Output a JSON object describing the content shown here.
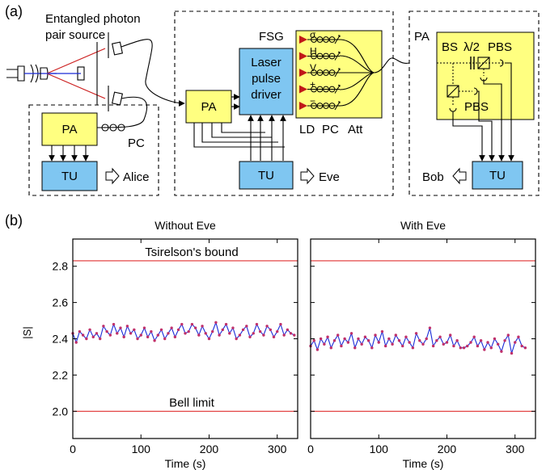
{
  "panel_a": {
    "letter": "(a)",
    "source_label_1": "Entangled photon",
    "source_label_2": "pair source",
    "alice": {
      "pa": "PA",
      "tu": "TU",
      "pc": "PC",
      "name": "Alice"
    },
    "eve": {
      "pa": "PA",
      "fsg": "FSG",
      "driver_1": "Laser",
      "driver_2": "pulse",
      "driver_3": "driver",
      "states": [
        "σ",
        "H",
        "V",
        "+",
        "−"
      ],
      "ld": "LD",
      "pc": "PC",
      "att": "Att",
      "tu": "TU",
      "name": "Eve"
    },
    "bob": {
      "pa": "PA",
      "bs": "BS",
      "half_wave": "λ/2",
      "pbs_top": "PBS",
      "pbs_bottom": "PBS",
      "tu": "TU",
      "name": "Bob"
    }
  },
  "panel_b": {
    "letter": "(b)",
    "ylabel": "|S|",
    "chart_data": [
      {
        "type": "line",
        "title": "Without Eve",
        "xlabel": "Time (s)",
        "ylabel": "|S|",
        "xlim": [
          0,
          330
        ],
        "ylim": [
          1.85,
          2.95
        ],
        "xticks": [
          0,
          100,
          200,
          300
        ],
        "yticks": [
          2.0,
          2.2,
          2.4,
          2.6,
          2.8
        ],
        "reference_lines": [
          {
            "label": "Tsirelson's bound",
            "y": 2.83
          },
          {
            "label": "Bell limit",
            "y": 2.0
          }
        ],
        "grid": false,
        "x": [
          0,
          5,
          10,
          15,
          20,
          25,
          30,
          35,
          40,
          45,
          50,
          55,
          60,
          65,
          70,
          75,
          80,
          85,
          90,
          95,
          100,
          105,
          110,
          115,
          120,
          125,
          130,
          135,
          140,
          145,
          150,
          155,
          160,
          165,
          170,
          175,
          180,
          185,
          190,
          195,
          200,
          205,
          210,
          215,
          220,
          225,
          230,
          235,
          240,
          245,
          250,
          255,
          260,
          265,
          270,
          275,
          280,
          285,
          290,
          295,
          300,
          305,
          310,
          315,
          320,
          325
        ],
        "y": [
          2.43,
          2.38,
          2.44,
          2.42,
          2.4,
          2.45,
          2.41,
          2.43,
          2.4,
          2.47,
          2.44,
          2.42,
          2.48,
          2.43,
          2.46,
          2.41,
          2.47,
          2.43,
          2.45,
          2.4,
          2.42,
          2.46,
          2.41,
          2.44,
          2.39,
          2.42,
          2.45,
          2.4,
          2.43,
          2.46,
          2.41,
          2.45,
          2.48,
          2.43,
          2.44,
          2.48,
          2.46,
          2.42,
          2.47,
          2.43,
          2.4,
          2.44,
          2.49,
          2.42,
          2.45,
          2.48,
          2.43,
          2.46,
          2.4,
          2.42,
          2.45,
          2.47,
          2.41,
          2.43,
          2.48,
          2.44,
          2.42,
          2.47,
          2.45,
          2.41,
          2.44,
          2.48,
          2.42,
          2.45,
          2.43,
          2.42
        ]
      },
      {
        "type": "line",
        "title": "With Eve",
        "xlabel": "Time (s)",
        "ylabel": "|S|",
        "xlim": [
          0,
          330
        ],
        "ylim": [
          1.85,
          2.95
        ],
        "xticks": [
          0,
          100,
          200,
          300
        ],
        "yticks": [
          2.0,
          2.2,
          2.4,
          2.6,
          2.8
        ],
        "reference_lines": [
          {
            "label": "",
            "y": 2.83
          },
          {
            "label": "",
            "y": 2.0
          }
        ],
        "grid": false,
        "x": [
          0,
          5,
          10,
          15,
          20,
          25,
          30,
          35,
          40,
          45,
          50,
          55,
          60,
          65,
          70,
          75,
          80,
          85,
          90,
          95,
          100,
          105,
          110,
          115,
          120,
          125,
          130,
          135,
          140,
          145,
          150,
          155,
          160,
          165,
          170,
          175,
          180,
          185,
          190,
          195,
          200,
          205,
          210,
          215,
          220,
          225,
          230,
          235,
          240,
          245,
          250,
          255,
          260,
          265,
          270,
          275,
          280,
          285,
          290,
          295,
          300,
          305,
          310,
          315
        ],
        "y": [
          2.36,
          2.39,
          2.34,
          2.4,
          2.37,
          2.41,
          2.35,
          2.39,
          2.42,
          2.36,
          2.4,
          2.38,
          2.43,
          2.35,
          2.4,
          2.37,
          2.41,
          2.39,
          2.35,
          2.42,
          2.38,
          2.44,
          2.36,
          2.4,
          2.37,
          2.42,
          2.39,
          2.36,
          2.41,
          2.38,
          2.35,
          2.43,
          2.39,
          2.37,
          2.4,
          2.46,
          2.36,
          2.39,
          2.41,
          2.37,
          2.38,
          2.42,
          2.36,
          2.39,
          2.35,
          2.35,
          2.36,
          2.38,
          2.41,
          2.36,
          2.39,
          2.34,
          2.38,
          2.35,
          2.4,
          2.37,
          2.33,
          2.39,
          2.42,
          2.32,
          2.38,
          2.41,
          2.36,
          2.35
        ]
      }
    ]
  }
}
